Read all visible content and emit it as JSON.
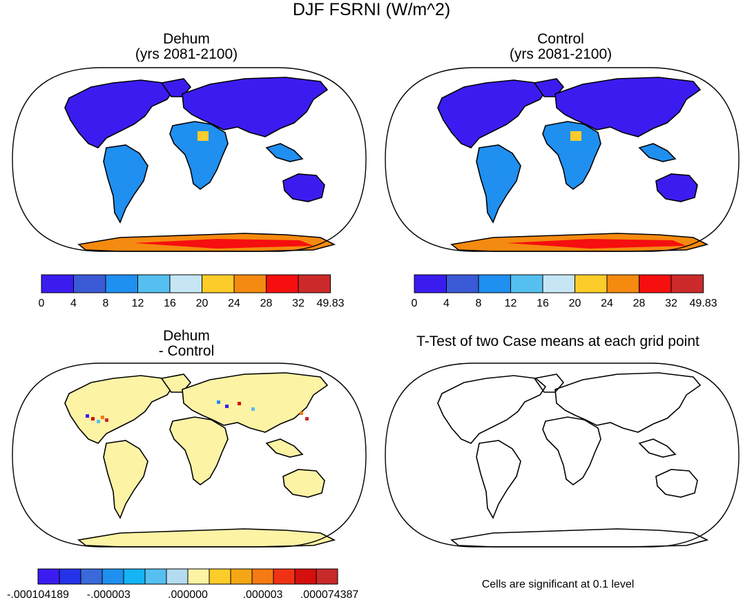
{
  "title": "DJF FSRNI (W/m^2)",
  "panels": [
    {
      "id": "dehum",
      "title_line1": "Dehum",
      "title_line2": "(yrs 2081-2100)"
    },
    {
      "id": "control",
      "title_line1": "Control",
      "title_line2": "(yrs 2081-2100)"
    },
    {
      "id": "diff",
      "title_line1": "Dehum",
      "title_line2": "- Control"
    },
    {
      "id": "ttest",
      "title_line1": "T-Test of two Case means at each grid point",
      "title_line2": ""
    }
  ],
  "colorbar_abs": {
    "colors": [
      "#3b1cf0",
      "#3a5ad6",
      "#1f8ff0",
      "#55bff0",
      "#c6e6f5",
      "#fccc2a",
      "#f58a10",
      "#f50f0f",
      "#cc2a2a"
    ],
    "labels": [
      "0",
      "4",
      "8",
      "12",
      "16",
      "20",
      "24",
      "28",
      "32",
      "49.83"
    ]
  },
  "colorbar_diff": {
    "colors": [
      "#3b1cf0",
      "#2433e8",
      "#3a6ad9",
      "#1f8ff0",
      "#14b4f5",
      "#55c0f0",
      "#b4dcf0",
      "#fdf3a5",
      "#fccc2a",
      "#f5a614",
      "#f57a14",
      "#f03214",
      "#d50e0e",
      "#c82a2a"
    ],
    "labels": [
      "-.000104189",
      "-.000003",
      ".000000",
      ".000003",
      ".000074387"
    ]
  },
  "ttest_note": "Cells are significant at 0.1 level",
  "map_colors": {
    "ocean": "#ffffff",
    "land_low": "#3b1cf0",
    "land_mid": "#1f8ff0",
    "antarctica": "#f58a10",
    "diff_land": "#fdf3a5"
  }
}
